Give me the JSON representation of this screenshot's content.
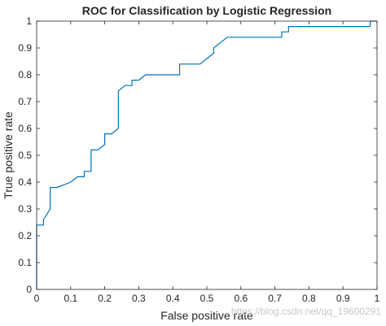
{
  "chart_data": {
    "type": "line",
    "title": "ROC for Classification by Logistic Regression",
    "xlabel": "False positive rate",
    "ylabel": "True positive rate",
    "xlim": [
      0,
      1
    ],
    "ylim": [
      0,
      1
    ],
    "xticks": [
      "0",
      "0.1",
      "0.2",
      "0.3",
      "0.4",
      "0.5",
      "0.6",
      "0.7",
      "0.8",
      "0.9",
      "1"
    ],
    "yticks": [
      "0",
      "0.1",
      "0.2",
      "0.3",
      "0.4",
      "0.5",
      "0.6",
      "0.7",
      "0.8",
      "0.9",
      "1"
    ],
    "grid": false,
    "series": [
      {
        "color": "#0072bd",
        "x": [
          0,
          0,
          0,
          0.02,
          0.02,
          0.04,
          0.04,
          0.06,
          0.1,
          0.12,
          0.14,
          0.14,
          0.16,
          0.16,
          0.18,
          0.2,
          0.2,
          0.22,
          0.24,
          0.24,
          0.26,
          0.28,
          0.28,
          0.3,
          0.32,
          0.42,
          0.42,
          0.48,
          0.52,
          0.52,
          0.56,
          0.72,
          0.72,
          0.74,
          0.74,
          0.98,
          0.98,
          1
        ],
        "y": [
          0,
          0.1,
          0.24,
          0.24,
          0.26,
          0.3,
          0.38,
          0.38,
          0.4,
          0.42,
          0.42,
          0.44,
          0.44,
          0.52,
          0.52,
          0.54,
          0.58,
          0.58,
          0.6,
          0.74,
          0.76,
          0.76,
          0.78,
          0.78,
          0.8,
          0.8,
          0.84,
          0.84,
          0.88,
          0.9,
          0.94,
          0.94,
          0.96,
          0.96,
          0.98,
          0.98,
          1,
          1
        ]
      }
    ]
  },
  "watermark": "https://blog.csdn.net/qq_19600291"
}
